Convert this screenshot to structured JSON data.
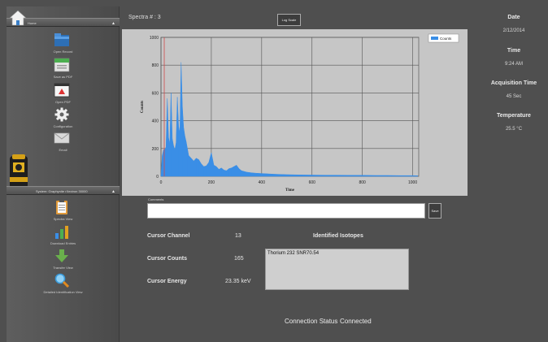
{
  "sidebar": {
    "home_header": "Home",
    "device_header": "System: Graphynite rXectron 30000",
    "home_items": [
      {
        "icon": "open-folder-icon",
        "label": "Open Record"
      },
      {
        "icon": "save-pdf-icon",
        "label": "Save as PDF"
      },
      {
        "icon": "open-pdf-icon",
        "label": "Open PDF"
      },
      {
        "icon": "gear-icon",
        "label": "Configuration"
      },
      {
        "icon": "email-icon",
        "label": "Email"
      }
    ],
    "device_items": [
      {
        "icon": "clipboard-icon",
        "label": "Spectra View"
      },
      {
        "icon": "bar-chart-icon",
        "label": "Download Entries"
      },
      {
        "icon": "down-arrow-icon",
        "label": "Transfer View"
      },
      {
        "icon": "magnifier-icon",
        "label": "Detailed Identification View"
      }
    ]
  },
  "toolbar": {
    "spectra_label": "Spectra # : 3",
    "log_scale_button": "Log Scale"
  },
  "chart_data": {
    "type": "area",
    "xlabel": "Time",
    "ylabel": "Counts",
    "xlim": [
      0,
      1024
    ],
    "ylim": [
      0,
      1000
    ],
    "xticks": [
      0,
      200,
      400,
      600,
      800,
      1000
    ],
    "yticks": [
      0,
      200,
      400,
      600,
      800,
      1000
    ],
    "grid": true,
    "legend": "top-right",
    "series_color": "#3a8ee6",
    "cursor_x": 13,
    "cursor_color": "#d14b4b",
    "series": [
      {
        "name": "Counts",
        "x": [
          0,
          5,
          10,
          15,
          20,
          25,
          30,
          35,
          40,
          45,
          50,
          55,
          60,
          65,
          70,
          75,
          80,
          85,
          90,
          95,
          100,
          105,
          110,
          120,
          130,
          140,
          150,
          160,
          170,
          180,
          190,
          200,
          210,
          220,
          230,
          240,
          250,
          260,
          270,
          280,
          290,
          300,
          310,
          320,
          340,
          360,
          380,
          400,
          420,
          450,
          480,
          500,
          550,
          600,
          650,
          700,
          750,
          800,
          850,
          900,
          950,
          1000,
          1020
        ],
        "values": [
          10,
          150,
          190,
          195,
          210,
          560,
          280,
          230,
          600,
          270,
          220,
          190,
          240,
          570,
          360,
          310,
          820,
          500,
          350,
          290,
          250,
          200,
          150,
          130,
          110,
          130,
          120,
          90,
          70,
          75,
          100,
          170,
          80,
          70,
          50,
          60,
          45,
          40,
          55,
          60,
          70,
          80,
          55,
          40,
          30,
          25,
          22,
          20,
          18,
          15,
          13,
          12,
          10,
          9,
          8,
          8,
          7,
          7,
          6,
          6,
          5,
          5,
          4
        ]
      }
    ]
  },
  "comments": {
    "label": "Comments",
    "value": "",
    "save_button": "Save"
  },
  "cursor": {
    "channel_label": "Cursor Channel",
    "channel_value": "13",
    "counts_label": "Cursor Counts",
    "counts_value": "165",
    "energy_label": "Cursor Energy",
    "energy_value": "23.35 keV"
  },
  "isotopes": {
    "title": "Identified Isotopes",
    "text": "Thorium 232 SNR70.54"
  },
  "connection": {
    "label": "Connection Status",
    "value": "Connected"
  },
  "right_panel": {
    "date_label": "Date",
    "date_value": "2/12/2014",
    "time_label": "Time",
    "time_value": "9:24 AM",
    "acq_label": "Acquisition Time",
    "acq_value": "45 Sec",
    "temp_label": "Temperature",
    "temp_value": "25.5 °C"
  }
}
